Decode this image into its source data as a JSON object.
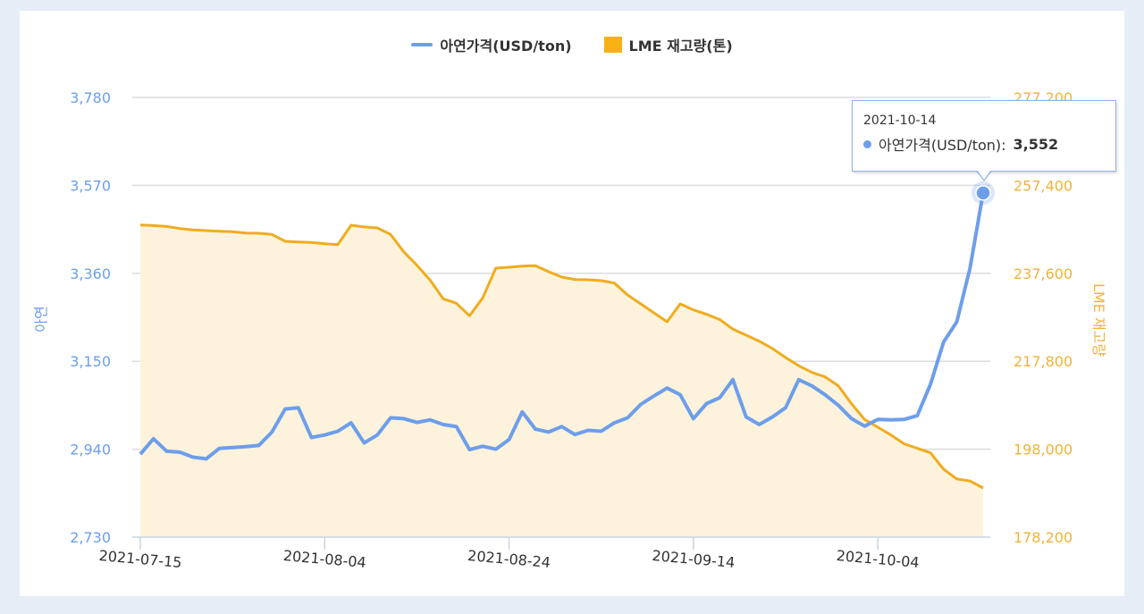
{
  "colors": {
    "zinc": "#6d9eeb",
    "stock_line": "#f0ac1e",
    "stock_fill": "#fdf3dc",
    "left_axis": "#6d9eeb",
    "right_axis": "#f0b23a",
    "background": "#e6edf7"
  },
  "tooltip": {
    "date": "2021-10-14",
    "series": "아연가격(USD/ton):",
    "value": "3,552"
  },
  "chart_data": {
    "type": "line",
    "legend_position": "top",
    "grid": true,
    "xlabel": "",
    "ylabel_left": "아연",
    "ylabel_right": "LME 재고량",
    "ylim_left": [
      2730,
      3780
    ],
    "ylim_right": [
      178200,
      277200
    ],
    "yticks_left": [
      "2,730",
      "2,940",
      "3,150",
      "3,360",
      "3,570",
      "3,780"
    ],
    "yticks_right": [
      "178,200",
      "198,000",
      "217,800",
      "237,600",
      "257,400",
      "277,200"
    ],
    "xtick_labels": [
      "2021-07-15",
      "2021-08-04",
      "2021-08-24",
      "2021-09-14",
      "2021-10-04"
    ],
    "x": [
      "2021-07-15",
      "2021-07-16",
      "2021-07-19",
      "2021-07-20",
      "2021-07-21",
      "2021-07-22",
      "2021-07-23",
      "2021-07-26",
      "2021-07-27",
      "2021-07-28",
      "2021-07-29",
      "2021-07-30",
      "2021-08-02",
      "2021-08-03",
      "2021-08-04",
      "2021-08-05",
      "2021-08-06",
      "2021-08-09",
      "2021-08-10",
      "2021-08-11",
      "2021-08-12",
      "2021-08-13",
      "2021-08-16",
      "2021-08-17",
      "2021-08-18",
      "2021-08-19",
      "2021-08-20",
      "2021-08-23",
      "2021-08-24",
      "2021-08-25",
      "2021-08-26",
      "2021-08-27",
      "2021-08-31",
      "2021-09-01",
      "2021-09-02",
      "2021-09-03",
      "2021-09-06",
      "2021-09-07",
      "2021-09-08",
      "2021-09-09",
      "2021-09-10",
      "2021-09-13",
      "2021-09-14",
      "2021-09-15",
      "2021-09-16",
      "2021-09-17",
      "2021-09-20",
      "2021-09-21",
      "2021-09-22",
      "2021-09-23",
      "2021-09-24",
      "2021-09-27",
      "2021-09-28",
      "2021-09-29",
      "2021-09-30",
      "2021-10-01",
      "2021-10-04",
      "2021-10-05",
      "2021-10-06",
      "2021-10-07",
      "2021-10-08",
      "2021-10-11",
      "2021-10-12",
      "2021-10-13",
      "2021-10-14"
    ],
    "series": [
      {
        "name": "아연가격(USD/ton)",
        "axis": "left",
        "type": "line",
        "values": [
          2928,
          2965,
          2935,
          2933,
          2921,
          2917,
          2942,
          2944,
          2946,
          2949,
          2981,
          3036,
          3039,
          2968,
          2974,
          2983,
          3003,
          2955,
          2974,
          3015,
          3013,
          3004,
          3010,
          2999,
          2994,
          2939,
          2947,
          2940,
          2963,
          3029,
          2988,
          2981,
          2994,
          2975,
          2985,
          2983,
          3003,
          3015,
          3047,
          3067,
          3086,
          3070,
          3013,
          3049,
          3063,
          3106,
          3017,
          2999,
          3017,
          3039,
          3106,
          3091,
          3070,
          3045,
          3013,
          2995,
          3011,
          3010,
          3011,
          3020,
          3095,
          3196,
          3244,
          3372,
          3552
        ]
      },
      {
        "name": "LME 재고량(톤)",
        "axis": "right",
        "type": "area",
        "values": [
          248490,
          248350,
          248150,
          247680,
          247350,
          247220,
          247080,
          246960,
          246680,
          246610,
          246350,
          244800,
          244660,
          244540,
          244260,
          244060,
          248430,
          248030,
          247820,
          246350,
          242450,
          239430,
          236080,
          231870,
          230860,
          228050,
          232070,
          238770,
          238970,
          239230,
          239320,
          237970,
          236760,
          236220,
          236160,
          235950,
          235410,
          232730,
          230720,
          228710,
          226700,
          230720,
          229380,
          228370,
          227200,
          225030,
          223680,
          222330,
          220660,
          218650,
          216780,
          215280,
          214280,
          212280,
          208250,
          204710,
          202950,
          201200,
          199200,
          198200,
          197180,
          193500,
          191290,
          190830,
          189270
        ]
      }
    ]
  }
}
